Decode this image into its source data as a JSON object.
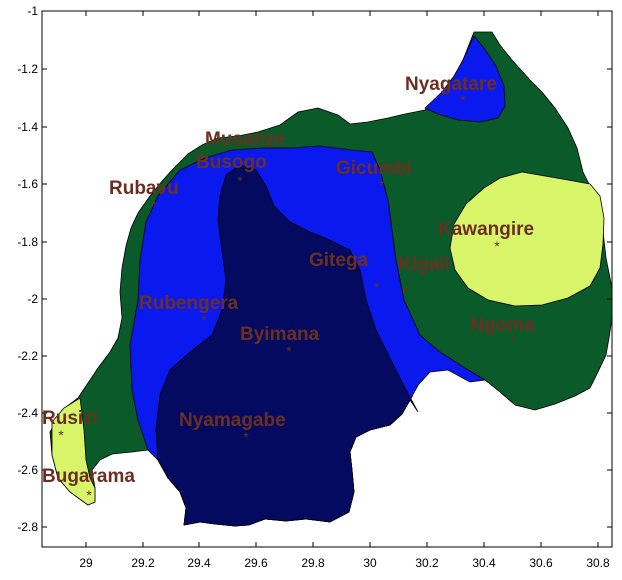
{
  "colors": {
    "dark_green": "#0a5a2a",
    "blue": "#0a1aee",
    "navy": "#030a60",
    "light_green": "#d8f56a",
    "label": "#6b2f22"
  },
  "axes": {
    "x_ticks": [
      "29",
      "29.2",
      "29.4",
      "29.6",
      "29.8",
      "30",
      "30.2",
      "30.4",
      "30.6",
      "30.8"
    ],
    "y_ticks": [
      "-1",
      "-1.2",
      "-1.4",
      "-1.6",
      "-1.8",
      "-2",
      "-2.2",
      "-2.4",
      "-2.6",
      "-2.8"
    ]
  },
  "stations": [
    {
      "name": "Nyagatare",
      "marker": "*"
    },
    {
      "name": "Musanze",
      "marker": "*"
    },
    {
      "name": "Busogo",
      "marker": "*"
    },
    {
      "name": "Gicumbi",
      "marker": "*"
    },
    {
      "name": "Rubavu",
      "marker": "*"
    },
    {
      "name": "Kawangire",
      "marker": "*"
    },
    {
      "name": "Gitega",
      "marker": "*"
    },
    {
      "name": "Kigali",
      "marker": "*"
    },
    {
      "name": "Rubengera",
      "marker": "*"
    },
    {
      "name": "Byimana",
      "marker": "*"
    },
    {
      "name": "Ngoma",
      "marker": "*"
    },
    {
      "name": "Rusizi",
      "marker": "*"
    },
    {
      "name": "Nyamagabe",
      "marker": "*"
    },
    {
      "name": "Bugarama",
      "marker": "*"
    }
  ]
}
